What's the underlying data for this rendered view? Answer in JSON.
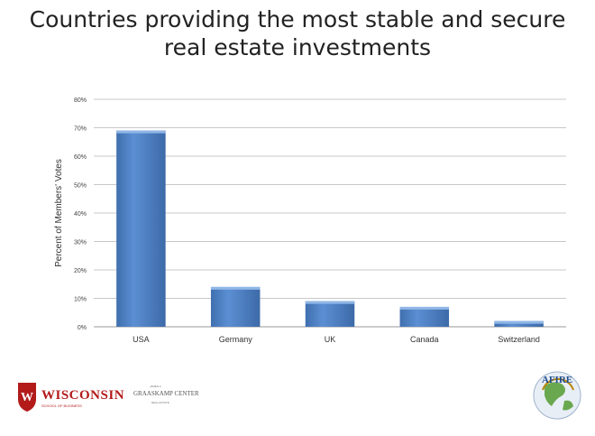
{
  "chart_data": {
    "type": "bar",
    "title_lines": [
      "Countries providing the most stable and secure",
      "real estate investments"
    ],
    "xlabel": "",
    "ylabel": "Percent of Members' Votes",
    "categories": [
      "USA",
      "Germany",
      "UK",
      "Canada",
      "Switzerland"
    ],
    "values": [
      69,
      14,
      9,
      7,
      2
    ],
    "ylim": [
      0,
      80
    ],
    "yticks": [
      "0%",
      "10%",
      "20%",
      "30%",
      "40%",
      "50%",
      "60%",
      "70%",
      "80%"
    ],
    "grid": true,
    "bar_color": "#4f81bd"
  },
  "footer": {
    "left_logo_text": "WISCONSIN",
    "left_logo_sub": "SCHOOL OF BUSINESS",
    "center_logo_top": "JAMES A.",
    "center_logo_text": "GRAASKAMP CENTER",
    "center_logo_sub": "REAL ESTATE",
    "right_logo_text": "AFIRE",
    "right_logo_icon": "globe-icon",
    "left_logo_icon": "crest-icon"
  }
}
